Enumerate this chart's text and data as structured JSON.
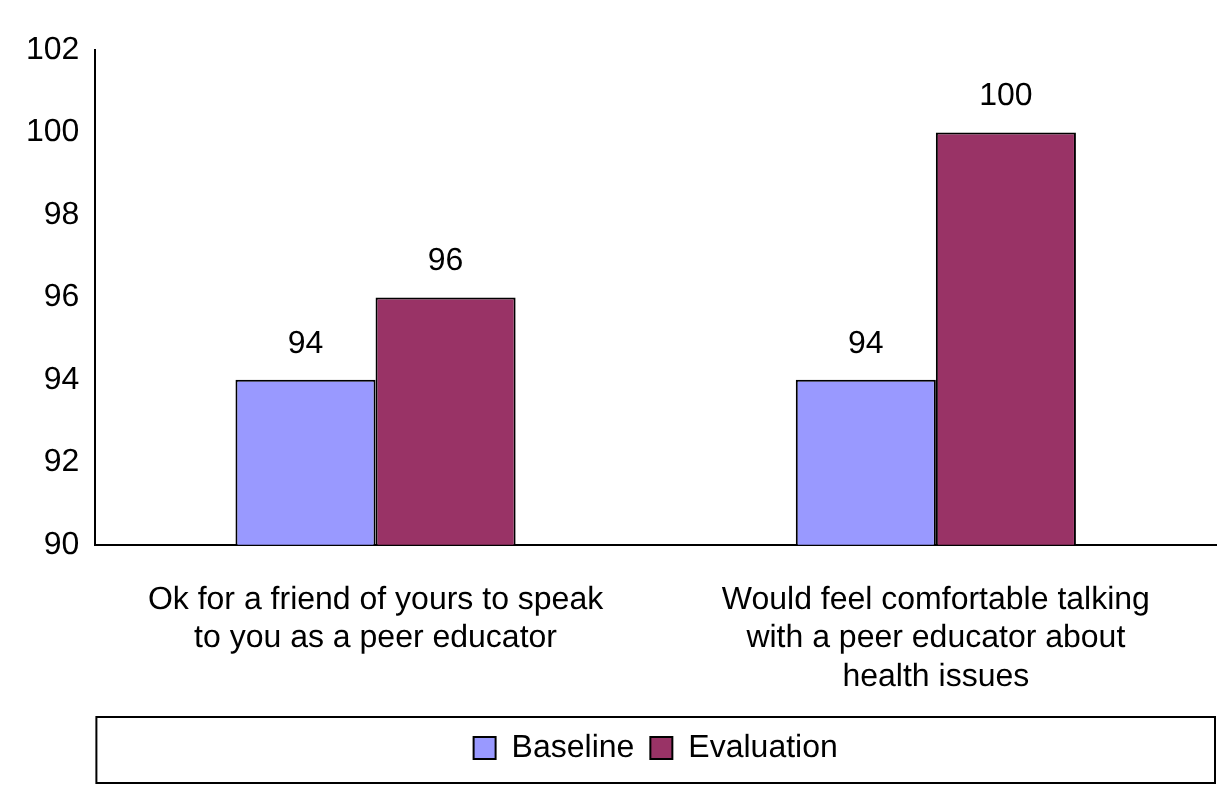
{
  "chart_data": {
    "type": "bar",
    "categories": [
      "Ok for a friend of yours to speak to you as a peer educator",
      "Would feel comfortable talking with a peer educator about health issues"
    ],
    "series": [
      {
        "name": "Baseline",
        "color": "#9999ff",
        "values": [
          94,
          94
        ]
      },
      {
        "name": "Evaluation",
        "color": "#993366",
        "values": [
          96,
          100
        ]
      }
    ],
    "ylim": [
      90,
      102
    ],
    "yticks": [
      90,
      92,
      94,
      96,
      98,
      100,
      102
    ],
    "grid": false,
    "legend": "bottom",
    "data_labels": true
  }
}
